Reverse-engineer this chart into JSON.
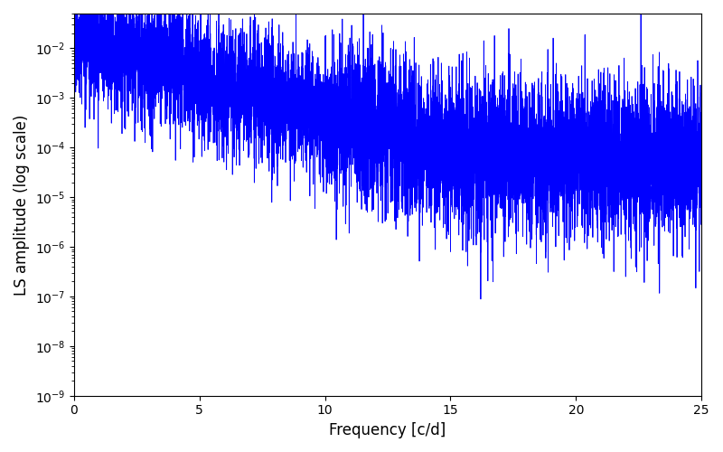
{
  "xlabel": "Frequency [c/d]",
  "ylabel": "LS amplitude (log scale)",
  "xlim": [
    0,
    25
  ],
  "ylim": [
    1e-09,
    0.05
  ],
  "line_color": "#0000ff",
  "line_width": 0.6,
  "background_color": "#ffffff",
  "freq_max": 25.0,
  "n_points": 8000,
  "seed": 12345
}
